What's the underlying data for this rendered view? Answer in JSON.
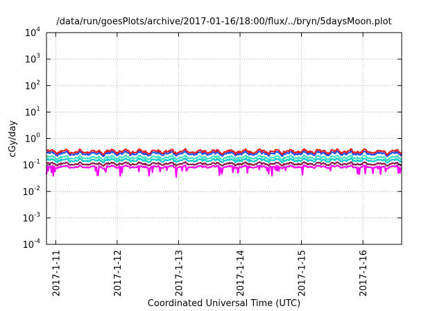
{
  "chart_data": {
    "type": "line",
    "title": "/data/run/goesPlots/archive/2017-01-16/18:00/flux/../bryn/5daysMoon.plot",
    "xlabel": "Coordinated Universal Time (UTC)",
    "ylabel": "cGy/day",
    "yscale": "log",
    "ylim": [
      0.0001,
      10000
    ],
    "xlim": [
      0,
      5.78
    ],
    "grid": true,
    "y_ticks": [
      {
        "base": "10",
        "exp": "4"
      },
      {
        "base": "10",
        "exp": "3"
      },
      {
        "base": "10",
        "exp": "2"
      },
      {
        "base": "10",
        "exp": "1"
      },
      {
        "base": "10",
        "exp": "0"
      },
      {
        "base": "10",
        "exp": "-1"
      },
      {
        "base": "10",
        "exp": "-2"
      },
      {
        "base": "10",
        "exp": "-3"
      },
      {
        "base": "10",
        "exp": "-4"
      }
    ],
    "x_ticks": [
      "2017-1-11",
      "2017-1-12",
      "2017-1-13",
      "2017-1-14",
      "2017-1-15",
      "2017-1-16"
    ],
    "series": [
      {
        "color": "#ff00ff",
        "base": 0.085
      },
      {
        "color": "#8b1a4a",
        "base": 0.11
      },
      {
        "color": "#00c8c8",
        "base": 0.15
      },
      {
        "color": "#40e0c0",
        "base": 0.19
      },
      {
        "color": "#1e50ff",
        "base": 0.27
      },
      {
        "color": "#e02020",
        "base": 0.32
      }
    ]
  }
}
